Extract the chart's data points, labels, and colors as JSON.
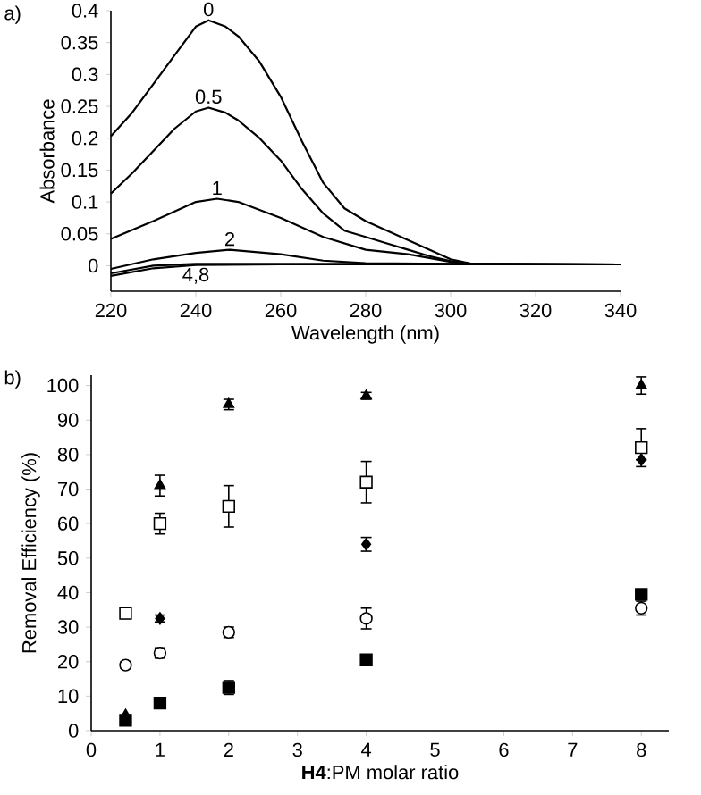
{
  "chart_data": [
    {
      "type": "line",
      "xlabel": "Wavelength (nm)",
      "ylabel": "Absorbance",
      "xlim": [
        220,
        340
      ],
      "ylim": [
        -0.04,
        0.4
      ],
      "xticks": [
        220,
        240,
        260,
        280,
        300,
        320,
        340
      ],
      "yticks": [
        0,
        0.05,
        0.1,
        0.15,
        0.2,
        0.25,
        0.3,
        0.35,
        0.4
      ],
      "marker": "none",
      "line_style": "solid",
      "grid": false,
      "legend": false,
      "annotations": [
        "a)"
      ],
      "series": [
        {
          "name": "0",
          "color": "#000000",
          "x": [
            220,
            225,
            230,
            235,
            240,
            243,
            247,
            250,
            255,
            260,
            265,
            270,
            275,
            280,
            285,
            290,
            295,
            300,
            305,
            320,
            340
          ],
          "values": [
            0.203,
            0.24,
            0.285,
            0.33,
            0.375,
            0.385,
            0.375,
            0.36,
            0.32,
            0.265,
            0.195,
            0.13,
            0.09,
            0.07,
            0.055,
            0.04,
            0.025,
            0.01,
            0.003,
            0.002,
            0.002
          ]
        },
        {
          "name": "0.5",
          "color": "#000000",
          "x": [
            220,
            225,
            230,
            235,
            240,
            243,
            247,
            250,
            255,
            260,
            265,
            270,
            275,
            280,
            285,
            290,
            295,
            300,
            305,
            340
          ],
          "values": [
            0.113,
            0.145,
            0.18,
            0.215,
            0.242,
            0.248,
            0.24,
            0.228,
            0.2,
            0.165,
            0.12,
            0.082,
            0.055,
            0.045,
            0.035,
            0.025,
            0.015,
            0.007,
            0.003,
            0.002
          ]
        },
        {
          "name": "1",
          "color": "#000000",
          "x": [
            220,
            230,
            240,
            245,
            250,
            260,
            270,
            280,
            290,
            300,
            305,
            340
          ],
          "values": [
            0.042,
            0.07,
            0.1,
            0.105,
            0.1,
            0.075,
            0.045,
            0.025,
            0.018,
            0.006,
            0.003,
            0.002
          ]
        },
        {
          "name": "2",
          "color": "#000000",
          "x": [
            220,
            230,
            240,
            248,
            260,
            270,
            280,
            300,
            340
          ],
          "values": [
            -0.005,
            0.01,
            0.02,
            0.025,
            0.018,
            0.008,
            0.004,
            0.003,
            0.002
          ]
        },
        {
          "name": "4,8",
          "color": "#000000",
          "x": [
            220,
            230,
            240,
            260,
            300,
            340
          ],
          "values": [
            -0.012,
            0.0,
            0.003,
            0.003,
            0.003,
            0.002
          ]
        },
        {
          "color": "#000000",
          "x": [
            220,
            230,
            240,
            260,
            340
          ],
          "values": [
            -0.016,
            -0.004,
            0.001,
            0.002,
            0.002
          ]
        }
      ]
    },
    {
      "type": "scatter",
      "xlabel": "**H4**:PM molar ratio",
      "ylabel": "Removal Efficiency (%)",
      "xlim": [
        0,
        8.4
      ],
      "ylim": [
        0,
        103
      ],
      "xticks": [
        0,
        1,
        2,
        3,
        4,
        5,
        6,
        7,
        8
      ],
      "yticks": [
        0,
        10,
        20,
        30,
        40,
        50,
        60,
        70,
        80,
        90,
        100
      ],
      "grid": false,
      "legend": false,
      "annotations": [
        "b)"
      ],
      "series": [
        {
          "marker": "triangle",
          "color": "#000000",
          "x": [
            0.5,
            1,
            2,
            4,
            8
          ],
          "values": [
            4.5,
            71,
            94.5,
            97,
            100
          ],
          "errors": [
            null,
            3,
            1.5,
            1,
            2.5
          ]
        },
        {
          "marker": "square",
          "color": "#ffffff",
          "x": [
            0.5,
            1,
            2,
            4,
            8
          ],
          "values": [
            34,
            60,
            65,
            72,
            82
          ],
          "errors": [
            1.5,
            3,
            6,
            6,
            5.5
          ]
        },
        {
          "marker": "diamond",
          "color": "#000000",
          "x": [
            1,
            4,
            8
          ],
          "values": [
            32.5,
            54,
            78.5
          ],
          "errors": [
            1,
            2,
            null
          ]
        },
        {
          "marker": "circle",
          "color": "#ffffff",
          "x": [
            0.5,
            1,
            2,
            4,
            8
          ],
          "values": [
            19,
            22.5,
            28.5,
            32.5,
            35.5
          ],
          "errors": [
            1,
            1.5,
            1.5,
            3,
            2
          ]
        },
        {
          "marker": "square",
          "color": "#000000",
          "x": [
            0.5,
            1,
            2,
            4,
            8
          ],
          "values": [
            3,
            8,
            12.5,
            20.5,
            39.5
          ],
          "errors": [
            1,
            null,
            2,
            1,
            1
          ]
        }
      ]
    }
  ]
}
